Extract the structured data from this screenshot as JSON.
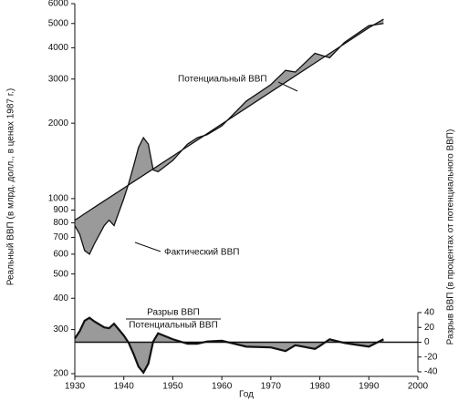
{
  "chart_data": {
    "type": "line",
    "x": [
      1930,
      1931,
      1932,
      1933,
      1934,
      1936,
      1937,
      1938,
      1940,
      1941,
      1942,
      1943,
      1944,
      1945,
      1946,
      1947,
      1950,
      1953,
      1955,
      1957,
      1960,
      1965,
      1970,
      1973,
      1975,
      1979,
      1980,
      1982,
      1985,
      1990,
      1993
    ],
    "series": [
      {
        "name": "Фактический ВВП",
        "color": "#111",
        "values": [
          780,
          720,
          620,
          600,
          660,
          780,
          820,
          780,
          1000,
          1150,
          1350,
          1600,
          1750,
          1650,
          1300,
          1280,
          1420,
          1650,
          1750,
          1800,
          1950,
          2450,
          2850,
          3250,
          3200,
          3800,
          3750,
          3650,
          4200,
          4900,
          5000
        ]
      },
      {
        "name": "Потенциальный ВВП",
        "color": "#111",
        "values": [
          820,
          844,
          870,
          896,
          923,
          979,
          1008,
          1038,
          1101,
          1134,
          1168,
          1203,
          1239,
          1276,
          1314,
          1353,
          1478,
          1614,
          1712,
          1815,
          1985,
          2301,
          2667,
          2912,
          3091,
          3477,
          3580,
          3797,
          4146,
          4806,
          5200
        ]
      },
      {
        "color": "#111",
        "axis": "y2",
        "values": [
          5,
          15,
          29,
          33,
          28,
          20,
          19,
          25,
          9,
          -1,
          -16,
          -33,
          -41,
          -29,
          1,
          12,
          4,
          -2,
          -2,
          1,
          2,
          -6,
          -7,
          -12,
          -4,
          -9,
          -5,
          4,
          -1,
          -6,
          4
        ]
      }
    ],
    "gap_label": {
      "numerator": "Разрыв ВВП",
      "denominator": "Потенциальный ВВП"
    },
    "xlabel": "Год",
    "ylabel": "Реальный ВВП (в млрд. долл., в ценах 1987 г.)",
    "y2label": "Разрыв ВВП (в процентах от потенциального ВВП)",
    "xlim": [
      1930,
      2000
    ],
    "xticks": [
      1930,
      1940,
      1950,
      1960,
      1970,
      1980,
      1990,
      2000
    ],
    "ylim": [
      200,
      6000
    ],
    "ylog": true,
    "yticks": [
      200,
      300,
      400,
      500,
      600,
      700,
      800,
      900,
      1000,
      2000,
      3000,
      4000,
      5000,
      6000
    ],
    "y2lim": [
      -40,
      40
    ],
    "y2ticks": [
      -40,
      -20,
      0,
      20,
      40
    ],
    "shade": "#9a9a9a"
  }
}
